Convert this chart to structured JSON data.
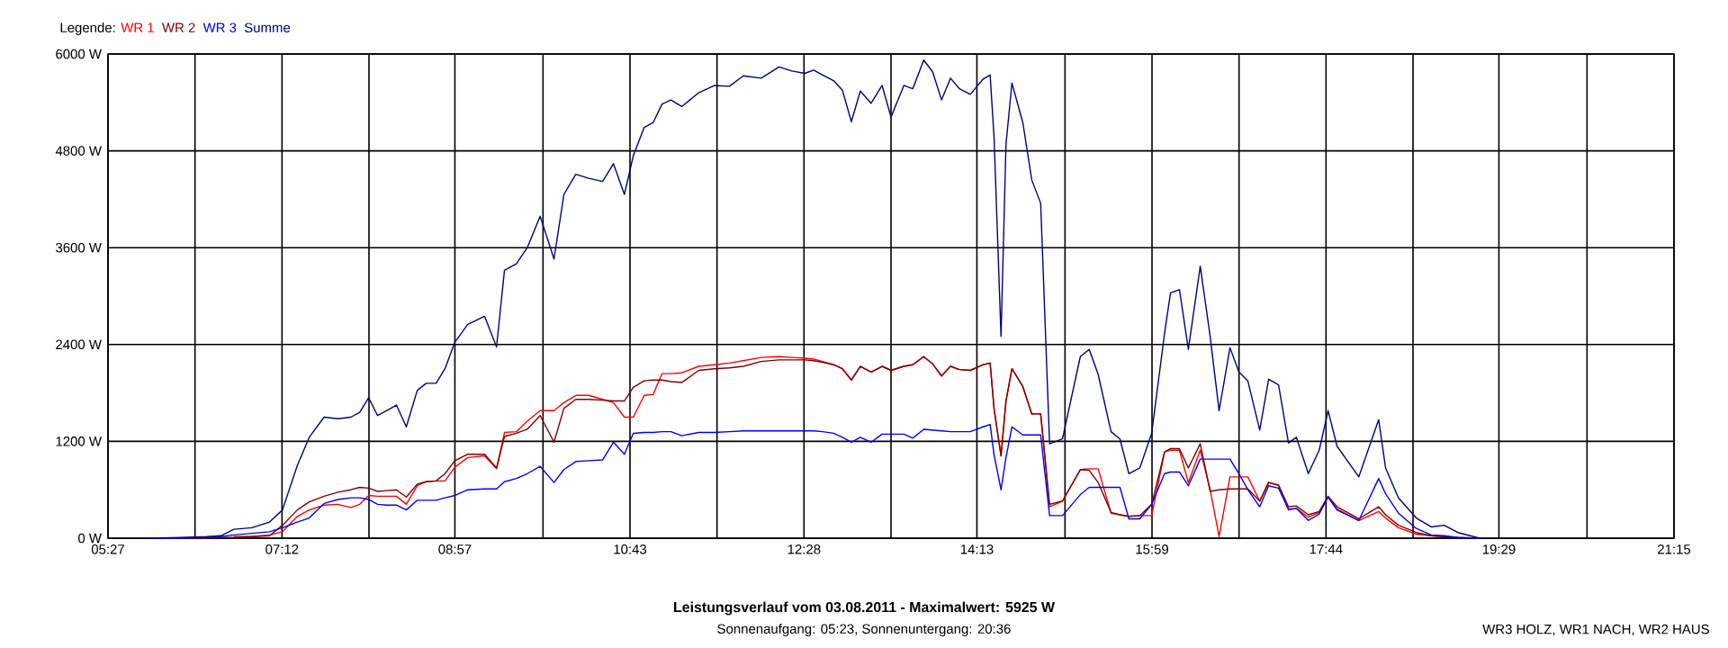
{
  "chart_data": {
    "type": "line",
    "title": "Leistungsverlauf vom 03.08.2011 - Maximalwert: 5925 W",
    "subtitle": "Sonnenaufgang: 05:23, Sonnenuntergang: 20:36",
    "annotations": [
      "WR3 HOLZ, WR1 NACH, WR2 HAUS"
    ],
    "legend_title": "Legende:",
    "legend": "top left",
    "grid": true,
    "xlim": [
      5.45,
      21.25
    ],
    "ylim": [
      0,
      6000
    ],
    "xticks": [
      {
        "value": 5.45,
        "label": "05:27"
      },
      {
        "value": 6.3278,
        "label": null
      },
      {
        "value": 7.2056,
        "label": "07:12"
      },
      {
        "value": 8.0833,
        "label": null
      },
      {
        "value": 8.95,
        "label": "08:57"
      },
      {
        "value": 9.8389,
        "label": null
      },
      {
        "value": 10.7167,
        "label": "10:43"
      },
      {
        "value": 11.5944,
        "label": null
      },
      {
        "value": 12.4722,
        "label": "12:28"
      },
      {
        "value": 13.35,
        "label": null
      },
      {
        "value": 14.2167,
        "label": "14:13"
      },
      {
        "value": 15.1056,
        "label": null
      },
      {
        "value": 15.9833,
        "label": "15:59"
      },
      {
        "value": 16.8611,
        "label": null
      },
      {
        "value": 17.7389,
        "label": "17:44"
      },
      {
        "value": 18.6167,
        "label": null
      },
      {
        "value": 19.4833,
        "label": "19:29"
      },
      {
        "value": 20.3722,
        "label": null
      },
      {
        "value": 21.25,
        "label": "21:15"
      }
    ],
    "yticks": [
      {
        "value": 0,
        "label": "0 W"
      },
      {
        "value": 1200,
        "label": "1200 W"
      },
      {
        "value": 2400,
        "label": "2400 W"
      },
      {
        "value": 3600,
        "label": "3600 W"
      },
      {
        "value": 4800,
        "label": "4800 W"
      },
      {
        "value": 6000,
        "label": "6000 W"
      }
    ],
    "x": [
      5.9,
      6.18,
      6.45,
      6.59,
      6.72,
      6.9,
      7.08,
      7.21,
      7.36,
      7.48,
      7.63,
      7.77,
      7.9,
      7.99,
      8.08,
      8.17,
      8.26,
      8.36,
      8.46,
      8.57,
      8.66,
      8.76,
      8.85,
      8.95,
      9.08,
      9.25,
      9.37,
      9.45,
      9.57,
      9.68,
      9.81,
      9.95,
      10.05,
      10.17,
      10.3,
      10.44,
      10.55,
      10.66,
      10.75,
      10.86,
      10.95,
      11.04,
      11.13,
      11.24,
      11.41,
      11.57,
      11.72,
      11.86,
      12.04,
      12.22,
      12.35,
      12.48,
      12.57,
      12.66,
      12.77,
      12.86,
      12.95,
      13.04,
      13.15,
      13.26,
      13.35,
      13.48,
      13.57,
      13.68,
      13.77,
      13.86,
      13.95,
      14.04,
      14.15,
      14.28,
      14.35,
      14.39,
      14.46,
      14.51,
      14.57,
      14.68,
      14.77,
      14.86,
      14.95,
      15.08,
      15.26,
      15.35,
      15.44,
      15.57,
      15.66,
      15.75,
      15.86,
      15.98,
      16.11,
      16.17,
      16.26,
      16.35,
      16.47,
      16.57,
      16.66,
      16.77,
      16.86,
      16.95,
      17.07,
      17.16,
      17.26,
      17.36,
      17.44,
      17.56,
      17.67,
      17.76,
      17.85,
      18.07,
      18.27,
      18.34,
      18.47,
      18.65,
      18.8,
      18.93,
      19.07,
      19.29
    ],
    "series": [
      {
        "name": "WR 1",
        "color": "#ff0000",
        "values": [
          null,
          null,
          null,
          null,
          20,
          20,
          40,
          80,
          270,
          350,
          410,
          420,
          380,
          420,
          530,
          520,
          520,
          520,
          420,
          650,
          700,
          710,
          710,
          880,
          1000,
          1020,
          860,
          1310,
          1320,
          1450,
          1580,
          1580,
          1680,
          1770,
          1770,
          1720,
          1680,
          1500,
          1500,
          1770,
          1780,
          2040,
          2040,
          2050,
          2130,
          2150,
          2170,
          2200,
          2240,
          2250,
          2240,
          2230,
          2220,
          2190,
          2150,
          2100,
          1960,
          2130,
          2060,
          2130,
          2080,
          2130,
          2150,
          2250,
          2160,
          2010,
          2130,
          2090,
          2080,
          2150,
          2170,
          1600,
          1020,
          1700,
          2100,
          1880,
          1540,
          1540,
          390,
          460,
          850,
          860,
          860,
          310,
          290,
          270,
          280,
          280,
          1070,
          1090,
          1090,
          690,
          1090,
          600,
          20,
          760,
          760,
          760,
          460,
          690,
          650,
          350,
          370,
          260,
          320,
          510,
          360,
          220,
          330,
          250,
          130,
          50,
          30,
          20,
          null,
          null
        ]
      },
      {
        "name": "WR 2",
        "color": "#800000",
        "values": [
          0,
          0,
          0,
          10,
          10,
          20,
          30,
          160,
          350,
          450,
          520,
          570,
          600,
          630,
          620,
          580,
          590,
          600,
          510,
          670,
          700,
          710,
          800,
          960,
          1040,
          1040,
          870,
          1260,
          1300,
          1350,
          1520,
          1190,
          1610,
          1720,
          1720,
          1710,
          1700,
          1700,
          1870,
          1950,
          1960,
          1960,
          1940,
          1930,
          2080,
          2100,
          2110,
          2130,
          2190,
          2210,
          2210,
          2210,
          2200,
          2180,
          2150,
          2100,
          1960,
          2130,
          2060,
          2130,
          2080,
          2130,
          2150,
          2250,
          2160,
          2010,
          2130,
          2090,
          2080,
          2150,
          2170,
          1600,
          1020,
          1700,
          2100,
          1880,
          1540,
          1540,
          420,
          460,
          850,
          840,
          690,
          320,
          290,
          270,
          280,
          420,
          1070,
          1110,
          1110,
          870,
          1170,
          580,
          600,
          610,
          610,
          610,
          460,
          690,
          660,
          390,
          400,
          290,
          330,
          520,
          390,
          240,
          390,
          290,
          160,
          70,
          30,
          20,
          10,
          0
        ]
      },
      {
        "name": "WR 3",
        "color": "#0000ff",
        "values": [
          0,
          0,
          10,
          20,
          40,
          60,
          80,
          130,
          200,
          250,
          430,
          480,
          500,
          500,
          480,
          420,
          410,
          410,
          350,
          470,
          470,
          470,
          500,
          530,
          600,
          610,
          610,
          700,
          740,
          800,
          890,
          690,
          850,
          950,
          960,
          970,
          1190,
          1040,
          1300,
          1310,
          1310,
          1320,
          1320,
          1270,
          1310,
          1310,
          1320,
          1330,
          1330,
          1330,
          1330,
          1330,
          1330,
          1320,
          1300,
          1250,
          1190,
          1250,
          1190,
          1290,
          1290,
          1290,
          1240,
          1350,
          1340,
          1330,
          1320,
          1320,
          1320,
          1380,
          1410,
          1030,
          600,
          1000,
          1380,
          1280,
          1280,
          1280,
          280,
          280,
          540,
          630,
          630,
          630,
          630,
          240,
          240,
          420,
          800,
          820,
          820,
          650,
          980,
          980,
          980,
          980,
          800,
          600,
          390,
          650,
          620,
          360,
          370,
          220,
          300,
          510,
          350,
          220,
          740,
          550,
          310,
          120,
          40,
          30,
          10,
          0
        ]
      },
      {
        "name": "Summe",
        "color": "#000080",
        "values": [
          0,
          10,
          20,
          30,
          110,
          130,
          200,
          350,
          900,
          1250,
          1500,
          1480,
          1500,
          1560,
          1740,
          1520,
          1580,
          1650,
          1380,
          1830,
          1920,
          1920,
          2100,
          2430,
          2650,
          2750,
          2370,
          3320,
          3400,
          3600,
          3990,
          3460,
          4260,
          4510,
          4460,
          4420,
          4640,
          4260,
          4740,
          5090,
          5150,
          5380,
          5430,
          5350,
          5520,
          5610,
          5600,
          5730,
          5700,
          5840,
          5790,
          5760,
          5800,
          5740,
          5670,
          5550,
          5160,
          5540,
          5390,
          5610,
          5220,
          5610,
          5570,
          5925,
          5780,
          5430,
          5700,
          5570,
          5500,
          5690,
          5740,
          4960,
          2500,
          4880,
          5640,
          5150,
          4440,
          4150,
          1170,
          1230,
          2250,
          2340,
          2030,
          1320,
          1230,
          800,
          870,
          1300,
          2540,
          3040,
          3080,
          2340,
          3370,
          2500,
          1580,
          2360,
          2060,
          1950,
          1340,
          1970,
          1900,
          1180,
          1250,
          800,
          1090,
          1580,
          1140,
          760,
          1470,
          870,
          500,
          250,
          140,
          160,
          70,
          0
        ]
      }
    ]
  }
}
